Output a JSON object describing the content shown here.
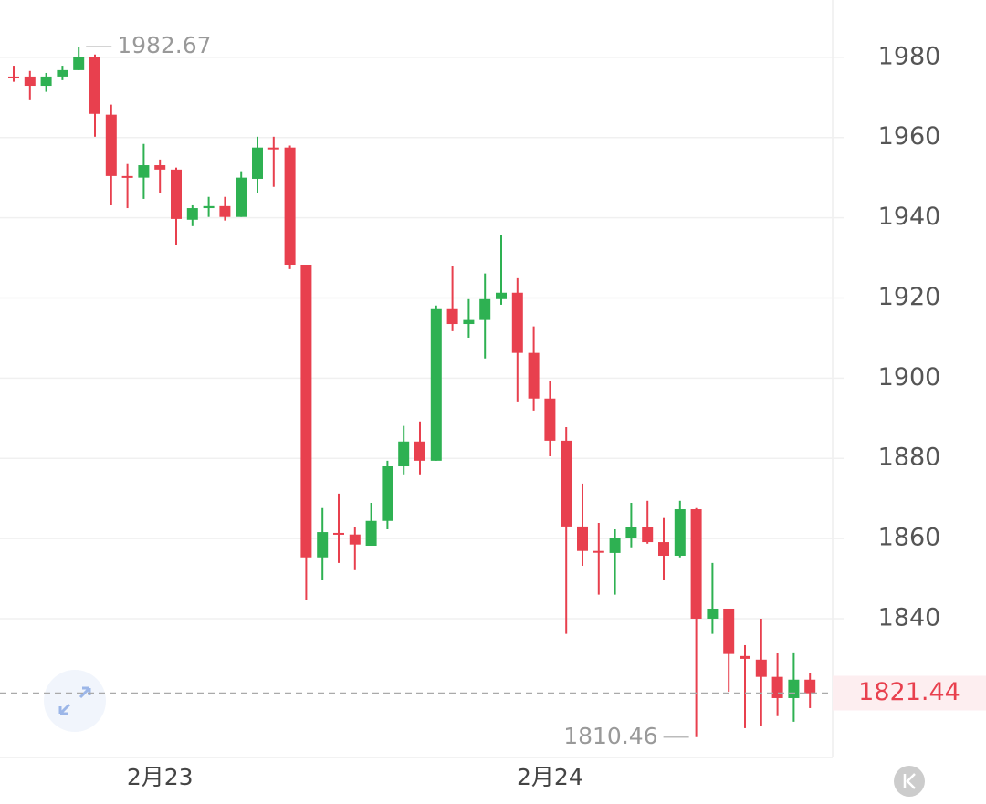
{
  "chart_data": {
    "type": "candlestick",
    "categories": [
      null,
      null,
      null,
      null,
      null,
      null,
      null,
      null,
      null,
      "2月23",
      null,
      null,
      null,
      null,
      null,
      null,
      null,
      null,
      null,
      null,
      null,
      null,
      null,
      null,
      null,
      null,
      null,
      null,
      null,
      null,
      null,
      null,
      null,
      "2月24",
      null,
      null,
      null,
      null,
      null,
      null,
      null,
      null,
      null,
      null,
      null,
      null,
      null,
      null,
      null,
      null
    ],
    "open": [
      1975.2,
      1975.2,
      1972.9,
      1975.2,
      1976.8,
      1980.0,
      1965.7,
      1950.4,
      1950.0,
      1953.1,
      1952.0,
      1939.5,
      1942.4,
      1942.9,
      1940.2,
      1949.7,
      1957.5,
      1957.5,
      1928.3,
      1855.3,
      1861.4,
      1861.0,
      1858.2,
      1864.4,
      1878.0,
      1884.2,
      1879.4,
      1917.2,
      1913.5,
      1914.5,
      1919.7,
      1921.3,
      1906.3,
      1894.9,
      1884.4,
      1863.0,
      1856.9,
      1856.4,
      1860.1,
      1862.8,
      1859.1,
      1855.7,
      1867.3,
      1840.0,
      1842.5,
      1830.7,
      1829.8,
      1825.5,
      1820.2,
      1824.8
    ],
    "high": [
      1977.9,
      1976.6,
      1976.1,
      1977.9,
      1982.67,
      1980.7,
      1968.2,
      1953.4,
      1958.4,
      1954.5,
      1952.5,
      1943.1,
      1945.2,
      1945.2,
      1951.6,
      1960.2,
      1960.2,
      1958.0,
      1928.3,
      1867.6,
      1871.2,
      1862.8,
      1868.9,
      1879.4,
      1888.1,
      1889.2,
      1918.1,
      1927.9,
      1919.7,
      1926.1,
      1935.6,
      1924.9,
      1912.9,
      1899.4,
      1887.8,
      1873.7,
      1863.9,
      1862.3,
      1868.9,
      1869.4,
      1865.1,
      1869.4,
      1867.6,
      1853.9,
      1842.5,
      1833.4,
      1840.0,
      1831.4,
      1831.6,
      1826.4
    ],
    "low": [
      1973.9,
      1969.3,
      1971.4,
      1974.3,
      1976.8,
      1960.2,
      1943.1,
      1942.4,
      1944.7,
      1946.1,
      1933.3,
      1937.9,
      1940.2,
      1939.3,
      1940.2,
      1946.1,
      1947.7,
      1927.2,
      1844.6,
      1849.6,
      1853.9,
      1852.1,
      1858.2,
      1862.3,
      1876.0,
      1876.0,
      1879.4,
      1911.7,
      1910.1,
      1904.9,
      1918.3,
      1894.2,
      1891.9,
      1880.5,
      1836.2,
      1853.2,
      1846.0,
      1846.0,
      1857.8,
      1858.7,
      1849.6,
      1855.3,
      1810.46,
      1836.2,
      1821.8,
      1812.7,
      1813.2,
      1815.7,
      1814.3,
      1817.7
    ],
    "close": [
      1975.0,
      1972.9,
      1975.2,
      1976.8,
      1980.0,
      1965.9,
      1950.4,
      1950.2,
      1953.1,
      1952.0,
      1939.7,
      1942.4,
      1942.9,
      1940.2,
      1950.0,
      1957.5,
      1957.2,
      1928.3,
      1855.3,
      1861.6,
      1861.2,
      1858.5,
      1864.4,
      1878.0,
      1884.2,
      1879.4,
      1917.2,
      1913.5,
      1914.5,
      1919.7,
      1921.3,
      1906.3,
      1894.9,
      1884.4,
      1863.0,
      1856.9,
      1856.6,
      1860.1,
      1862.8,
      1859.1,
      1855.7,
      1867.3,
      1840.0,
      1842.5,
      1831.2,
      1830.0,
      1825.5,
      1820.2,
      1824.8,
      1821.4
    ],
    "up_color": "#2eb152",
    "down_color": "#e8404e",
    "ylim": [
      1805.4,
      1994.3
    ],
    "yticks": [
      1840,
      1860,
      1880,
      1900,
      1920,
      1940,
      1960,
      1980
    ],
    "grid": true,
    "high_label": 1982.67,
    "low_label": 1810.46,
    "last_price": 1821.44
  }
}
